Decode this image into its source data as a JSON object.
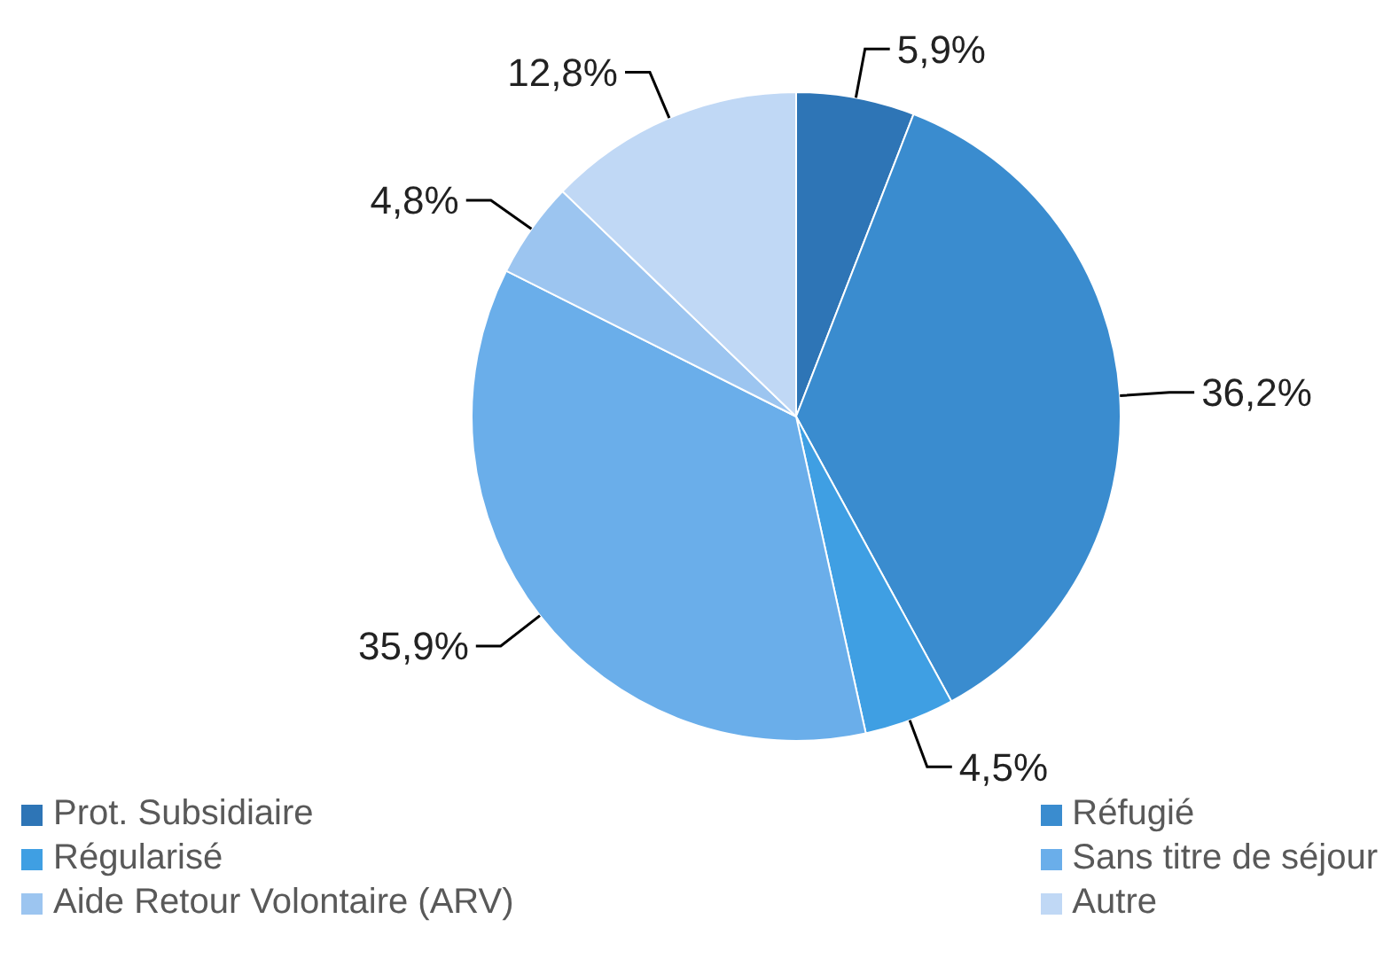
{
  "chart_data": {
    "type": "pie",
    "categories": [
      "Prot. Subsidiaire",
      "Réfugié",
      "Régularisé",
      "Sans titre de séjour",
      "Aide Retour Volontaire (ARV)",
      "Autre"
    ],
    "values": [
      5.9,
      36.2,
      4.5,
      35.9,
      4.8,
      12.8
    ],
    "value_labels": [
      "5,9%",
      "36,2%",
      "4,5%",
      "35,9%",
      "4,8%",
      "12,8%"
    ],
    "colors": [
      "#2e75b6",
      "#3a8ccf",
      "#3f9fe3",
      "#6aaeea",
      "#9cc5f0",
      "#c0d8f5"
    ],
    "legend": "bottom"
  }
}
